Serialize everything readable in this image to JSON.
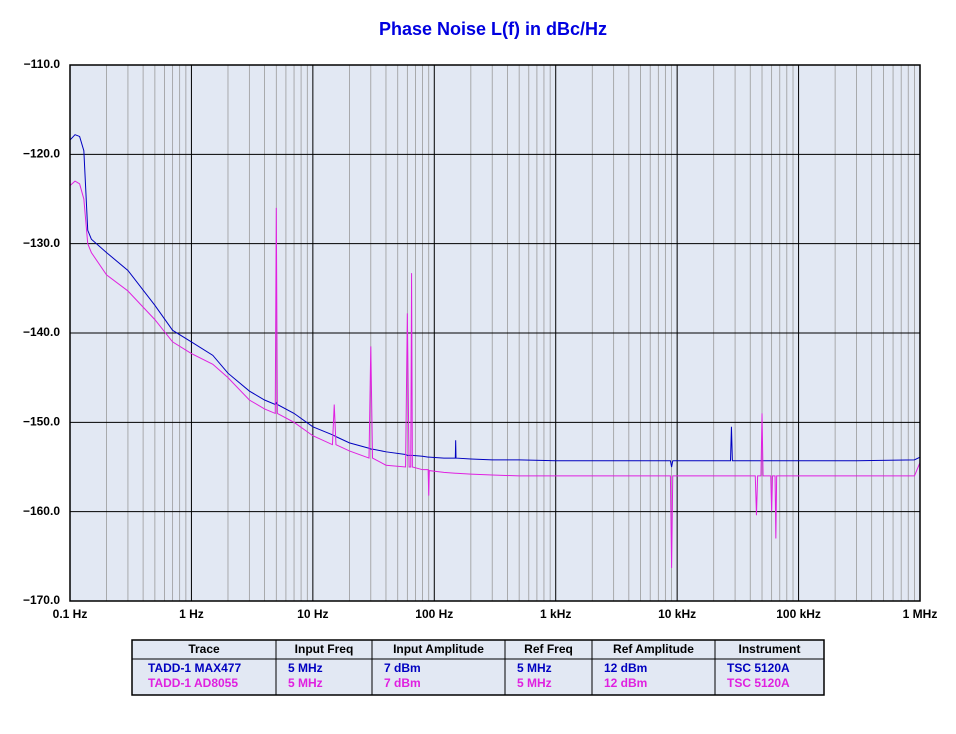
{
  "chart_data": {
    "type": "line",
    "title": "Phase Noise L(f) in dBc/Hz",
    "xscale": "log",
    "grid": true,
    "xlim": [
      0.1,
      1000000
    ],
    "xticks": [
      {
        "value": 0.1,
        "label": "0.1 Hz"
      },
      {
        "value": 1,
        "label": "1 Hz"
      },
      {
        "value": 10,
        "label": "10 Hz"
      },
      {
        "value": 100,
        "label": "100 Hz"
      },
      {
        "value": 1000,
        "label": "1 kHz"
      },
      {
        "value": 10000,
        "label": "10 kHz"
      },
      {
        "value": 100000,
        "label": "100 kHz"
      },
      {
        "value": 1000000,
        "label": "1 MHz"
      }
    ],
    "ylim": [
      -170,
      -110
    ],
    "yticks": [
      {
        "value": -170,
        "label": "−170.0"
      },
      {
        "value": -160,
        "label": "−160.0"
      },
      {
        "value": -150,
        "label": "−150.0"
      },
      {
        "value": -140,
        "label": "−140.0"
      },
      {
        "value": -130,
        "label": "−130.0"
      },
      {
        "value": -120,
        "label": "−120.0"
      },
      {
        "value": -110,
        "label": "−110.0"
      }
    ],
    "x": [
      0.1,
      0.11,
      0.12,
      0.13,
      0.14,
      0.15,
      0.2,
      0.3,
      0.5,
      0.7,
      1,
      1.5,
      2,
      3,
      4,
      4.9,
      5,
      5.1,
      7,
      10,
      14.5,
      15,
      15.5,
      20,
      29,
      30,
      31,
      40,
      58,
      60,
      62,
      64,
      65,
      66,
      80,
      89,
      90,
      91,
      120,
      149,
      150,
      151,
      200,
      300,
      500,
      1000,
      3000,
      8800,
      9000,
      9200,
      20000,
      27500,
      28000,
      28500,
      44000,
      45000,
      46000,
      49000,
      50000,
      51000,
      59000,
      60000,
      61000,
      64000,
      65000,
      66000,
      100000,
      300000,
      900000,
      1000000
    ],
    "table_columns": [
      "Trace",
      "Input Freq",
      "Input Amplitude",
      "Ref Freq",
      "Ref Amplitude",
      "Instrument"
    ],
    "series": [
      {
        "name": "TADD-1 MAX477",
        "color": "#0000c0",
        "details": [
          "5 MHz",
          "7 dBm",
          "5 MHz",
          "12 dBm",
          "TSC 5120A"
        ],
        "values": [
          -118.4,
          -117.8,
          -118,
          -119.6,
          -128.5,
          -129.5,
          -131,
          -133,
          -136.9,
          -139.7,
          -141,
          -142.5,
          -144.5,
          -146.5,
          -147.5,
          -148,
          -147.8,
          -148,
          -149,
          -150.5,
          -151.4,
          -151.5,
          -151.6,
          -152.3,
          -152.9,
          -153,
          -153,
          -153.3,
          -153.6,
          -153.7,
          -153.7,
          -153.7,
          -153.7,
          -153.7,
          -153.8,
          -153.9,
          -153.9,
          -153.9,
          -154,
          -154,
          -152,
          -154,
          -154.1,
          -154.2,
          -154.2,
          -154.3,
          -154.3,
          -154.3,
          -155,
          -154.3,
          -154.3,
          -154.3,
          -150.5,
          -154.3,
          -154.3,
          -154.3,
          -154.3,
          -154.3,
          -154.3,
          -154.3,
          -154.3,
          -154.3,
          -154.3,
          -154.3,
          -154.3,
          -154.3,
          -154.3,
          -154.3,
          -154.2,
          -153.9
        ]
      },
      {
        "name": "TADD-1 AD8055",
        "color": "#e020e0",
        "details": [
          "5 MHz",
          "7 dBm",
          "5 MHz",
          "12 dBm",
          "TSC 5120A"
        ],
        "values": [
          -123.5,
          -123,
          -123.3,
          -125,
          -130,
          -131,
          -133.5,
          -135.3,
          -138.5,
          -141,
          -142.3,
          -143.5,
          -145,
          -147.5,
          -148.5,
          -149,
          -126,
          -149,
          -150,
          -151.5,
          -152.5,
          -148,
          -152.5,
          -153.2,
          -154,
          -141.5,
          -154,
          -154.8,
          -155,
          -137.8,
          -155,
          -155,
          -133.3,
          -155,
          -155.3,
          -155.3,
          -158.2,
          -155.4,
          -155.6,
          -155.7,
          -155.7,
          -155.7,
          -155.8,
          -155.9,
          -156,
          -156,
          -156,
          -156,
          -166.3,
          -156,
          -156,
          -156,
          -156,
          -156,
          -156,
          -160.4,
          -156,
          -156,
          -149,
          -156,
          -156,
          -160,
          -156,
          -156,
          -163,
          -156,
          -156,
          -156,
          -156,
          -154.5
        ]
      }
    ]
  }
}
